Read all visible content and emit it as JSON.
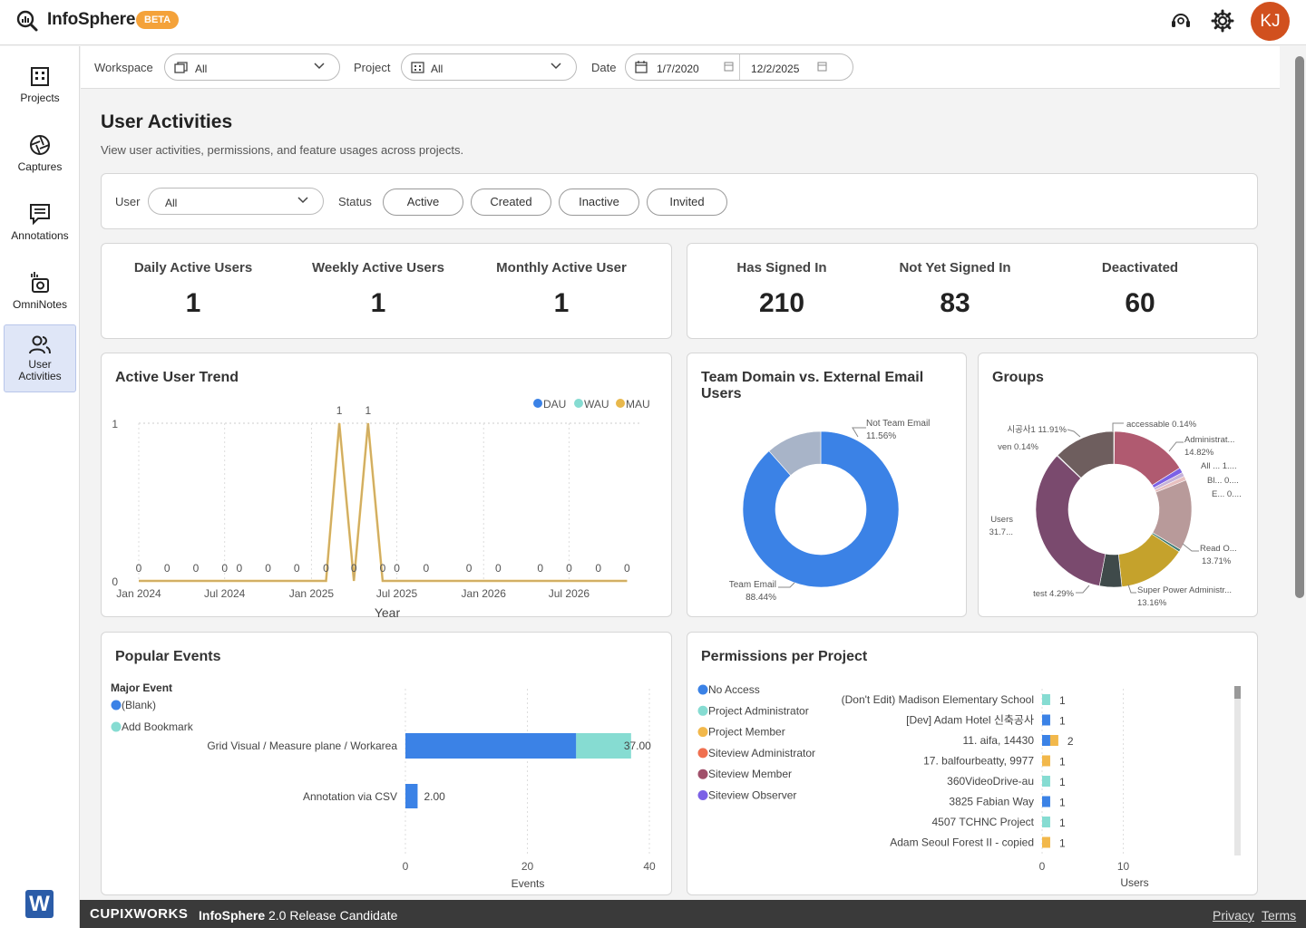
{
  "app": {
    "name": "InfoSphere",
    "badge": "BETA",
    "user_initials": "KJ"
  },
  "sidebar": {
    "items": [
      {
        "label": "Projects",
        "icon": "building-icon"
      },
      {
        "label": "Captures",
        "icon": "aperture-icon"
      },
      {
        "label": "Annotations",
        "icon": "annotation-icon"
      },
      {
        "label": "OmniNotes",
        "icon": "omninotes-icon"
      },
      {
        "label": "User\nActivities",
        "icon": "users-icon",
        "active": true
      }
    ]
  },
  "filters": {
    "workspace_label": "Workspace",
    "workspace_value": "All",
    "project_label": "Project",
    "project_value": "All",
    "date_label": "Date",
    "date_from": "1/7/2020",
    "date_to": "12/2/2025"
  },
  "page": {
    "title": "User Activities",
    "subtitle": "View user activities, permissions, and feature usages across projects."
  },
  "user_filter": {
    "user_label": "User",
    "user_value": "All",
    "status_label": "Status",
    "statuses": [
      "Active",
      "Created",
      "Inactive",
      "Invited"
    ]
  },
  "stats_active": [
    {
      "label": "Daily Active Users",
      "value": "1"
    },
    {
      "label": "Weekly Active Users",
      "value": "1"
    },
    {
      "label": "Monthly Active User",
      "value": "1"
    }
  ],
  "stats_signin": [
    {
      "label": "Has Signed In",
      "value": "210"
    },
    {
      "label": "Not Yet Signed In",
      "value": "83"
    },
    {
      "label": "Deactivated",
      "value": "60"
    }
  ],
  "trend": {
    "title": "Active User Trend",
    "xlabel": "Year",
    "chart_data": {
      "type": "line",
      "legend": [
        "DAU",
        "WAU",
        "MAU"
      ],
      "legend_colors": [
        "#3b82e6",
        "#86dcd2",
        "#e8b84b"
      ],
      "ylim": [
        0,
        1
      ],
      "y_ticks": [
        "0",
        "1"
      ],
      "x_ticks": [
        "Jan 2024",
        "Jul 2024",
        "Jan 2025",
        "Jul 2025",
        "Jan 2026",
        "Jul 2026"
      ],
      "x": [
        "2024-01",
        "2024-03",
        "2024-05",
        "2024-07",
        "2024-08",
        "2024-10",
        "2024-12",
        "2025-02",
        "2025-03",
        "2025-04",
        "2025-05",
        "2025-06",
        "2025-07",
        "2025-09",
        "2025-12",
        "2026-02",
        "2026-05",
        "2026-07",
        "2026-09",
        "2026-11"
      ],
      "values": [
        0,
        0,
        0,
        0,
        0,
        0,
        0,
        0,
        1,
        0,
        1,
        0,
        0,
        0,
        0,
        0,
        0,
        0,
        0,
        0
      ],
      "point_labels": [
        "0",
        "0",
        "0",
        "0",
        "0",
        "0",
        "0",
        "0",
        "1",
        "0",
        "1",
        "0",
        "0",
        "0",
        "0",
        "0",
        "0",
        "0",
        "0",
        "0"
      ]
    }
  },
  "domain": {
    "title": "Team Domain vs. External Email Users",
    "chart_data": {
      "type": "pie",
      "donut": true,
      "slices": [
        {
          "label": "Team Email",
          "pct": 88.44,
          "pct_label": "88.44%",
          "color": "#3b82e6"
        },
        {
          "label": "Not Team Email",
          "pct": 11.56,
          "pct_label": "11.56%",
          "color": "#a8b4c8"
        }
      ]
    }
  },
  "groups": {
    "title": "Groups",
    "chart_data": {
      "type": "pie",
      "donut": true,
      "slices": [
        {
          "label": "accessable",
          "pct": 0.14,
          "pct_label": "0.14%",
          "color": "#e8b84b"
        },
        {
          "label": "Administrat...",
          "pct": 14.82,
          "pct_label": "14.82%",
          "color": "#b05a70"
        },
        {
          "label": "All ...",
          "pct": 1.0,
          "pct_label": "1....",
          "color": "#7b61e6"
        },
        {
          "label": "Bl...",
          "pct": 0.8,
          "pct_label": "0....",
          "color": "#c5b2d8"
        },
        {
          "label": "E...",
          "pct": 0.8,
          "pct_label": "0....",
          "color": "#e7c0c0"
        },
        {
          "label": "Read O...",
          "pct": 13.71,
          "pct_label": "13.71%",
          "color": "#b89a9a"
        },
        {
          "label": "",
          "pct": 0.5,
          "pct_label": "",
          "color": "#3d7a70"
        },
        {
          "label": "Super Power Administr...",
          "pct": 13.16,
          "pct_label": "13.16%",
          "color": "#c5a22c"
        },
        {
          "label": "test",
          "pct": 4.29,
          "pct_label": "4.29%",
          "color": "#3f4a4a"
        },
        {
          "label": "Users",
          "pct": 31.7,
          "pct_label": "31.7...",
          "color": "#7a4a6e"
        },
        {
          "label": "ven",
          "pct": 0.14,
          "pct_label": "0.14%",
          "color": "#555577"
        },
        {
          "label": "시공사1",
          "pct": 11.91,
          "pct_label": "11.91%",
          "color": "#6e5e5e"
        }
      ]
    }
  },
  "popular": {
    "title": "Popular Events",
    "legend_title": "Major Event",
    "legend": [
      {
        "label": "(Blank)",
        "color": "#3b82e6"
      },
      {
        "label": "Add Bookmark",
        "color": "#86dcd2"
      }
    ],
    "xlabel": "Events",
    "chart_data": {
      "type": "bar",
      "orientation": "horizontal",
      "stacked": true,
      "categories": [
        "Grid Visual / Measure plane / Workarea",
        "Annotation via CSV"
      ],
      "series": [
        {
          "name": "(Blank)",
          "values": [
            28,
            2
          ]
        },
        {
          "name": "Add Bookmark",
          "values": [
            9,
            0
          ]
        }
      ],
      "totals": [
        "37.00",
        "2.00"
      ],
      "xlim": [
        0,
        40
      ],
      "x_ticks": [
        "0",
        "20",
        "40"
      ]
    }
  },
  "permissions": {
    "title": "Permissions per Project",
    "legend": [
      {
        "label": "No Access",
        "color": "#3b82e6"
      },
      {
        "label": "Project Administrator",
        "color": "#86dcd2"
      },
      {
        "label": "Project Member",
        "color": "#f2b84b"
      },
      {
        "label": "Siteview Administrator",
        "color": "#f07050"
      },
      {
        "label": "Siteview Member",
        "color": "#a0506a"
      },
      {
        "label": "Siteview Observer",
        "color": "#7b61e6"
      }
    ],
    "xlabel": "Users",
    "chart_data": {
      "type": "bar",
      "orientation": "horizontal",
      "stacked": true,
      "xlim": [
        0,
        23
      ],
      "x_ticks": [
        "0",
        "10"
      ],
      "categories": [
        "(Don't Edit) Madison Elementary School",
        "[Dev] Adam Hotel 신축공사",
        "11. aifa, 14430",
        "17. balfourbeatty, 9977",
        "360VideoDrive-au",
        "3825 Fabian Way",
        "4507 TCHNC Project",
        "Adam Seoul Forest II - copied"
      ],
      "rows": [
        {
          "segments": [
            {
              "role": "Project Administrator",
              "value": 1
            }
          ],
          "total": "1"
        },
        {
          "segments": [
            {
              "role": "No Access",
              "value": 1
            }
          ],
          "total": "1"
        },
        {
          "segments": [
            {
              "role": "No Access",
              "value": 1
            },
            {
              "role": "Project Member",
              "value": 1
            }
          ],
          "total": "2"
        },
        {
          "segments": [
            {
              "role": "Project Member",
              "value": 1
            }
          ],
          "total": "1"
        },
        {
          "segments": [
            {
              "role": "Project Administrator",
              "value": 1
            }
          ],
          "total": "1"
        },
        {
          "segments": [
            {
              "role": "No Access",
              "value": 1
            }
          ],
          "total": "1"
        },
        {
          "segments": [
            {
              "role": "Project Administrator",
              "value": 1
            }
          ],
          "total": "1"
        },
        {
          "segments": [
            {
              "role": "Project Member",
              "value": 1
            }
          ],
          "total": "1"
        }
      ]
    }
  },
  "footer": {
    "brand": "CUPIXWORKS",
    "product": "InfoSphere",
    "version": "2.0 Release Candidate",
    "privacy": "Privacy",
    "terms": "Terms"
  }
}
